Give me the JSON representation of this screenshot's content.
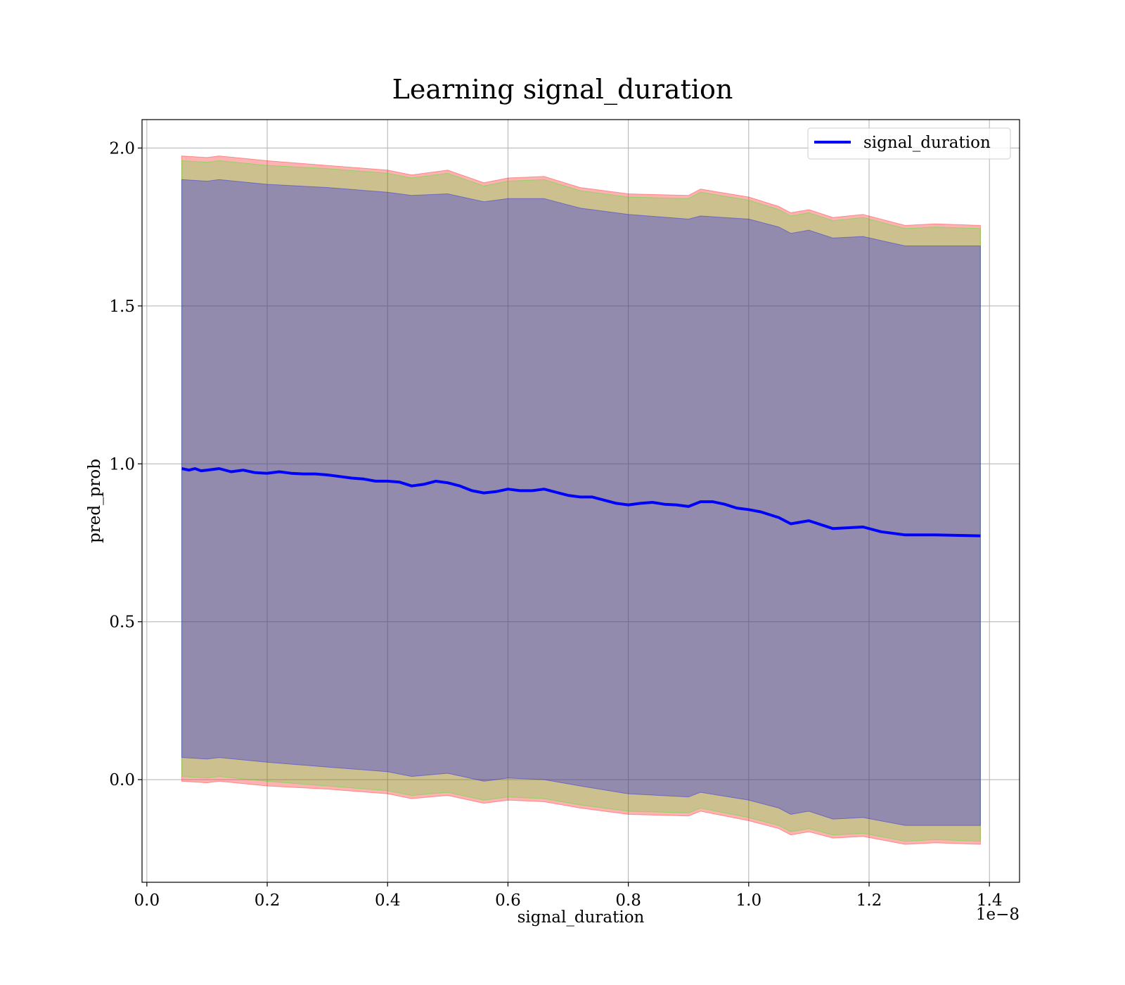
{
  "chart_data": {
    "type": "line",
    "title": "Learning signal_duration",
    "xlabel": "signal_duration",
    "ylabel": "pred_prob",
    "x_offset_text": "1e−8",
    "x_ticks": [
      0.0,
      0.2,
      0.4,
      0.6,
      0.8,
      1.0,
      1.2,
      1.4
    ],
    "x_tick_labels": [
      "0.0",
      "0.2",
      "0.4",
      "0.6",
      "0.8",
      "1.0",
      "1.2",
      "1.4"
    ],
    "y_ticks": [
      0.0,
      0.5,
      1.0,
      1.5,
      2.0
    ],
    "y_tick_labels": [
      "0.0",
      "0.5",
      "1.0",
      "1.5",
      "2.0"
    ],
    "xlim": [
      -0.008,
      1.45
    ],
    "ylim": [
      -0.325,
      2.09
    ],
    "grid": true,
    "legend_position": "top-right",
    "series": [
      {
        "name": "signal_duration",
        "color": "#0000ff",
        "x": [
          0.058,
          0.07,
          0.08,
          0.09,
          0.1,
          0.12,
          0.14,
          0.16,
          0.18,
          0.2,
          0.22,
          0.24,
          0.26,
          0.28,
          0.3,
          0.32,
          0.34,
          0.36,
          0.38,
          0.4,
          0.42,
          0.44,
          0.46,
          0.48,
          0.5,
          0.52,
          0.54,
          0.56,
          0.58,
          0.6,
          0.62,
          0.64,
          0.66,
          0.68,
          0.7,
          0.72,
          0.74,
          0.76,
          0.78,
          0.8,
          0.82,
          0.84,
          0.86,
          0.88,
          0.9,
          0.92,
          0.94,
          0.96,
          0.98,
          1.0,
          1.02,
          1.05,
          1.07,
          1.1,
          1.14,
          1.19,
          1.22,
          1.26,
          1.31,
          1.385
        ],
        "values": [
          0.985,
          0.98,
          0.985,
          0.978,
          0.98,
          0.985,
          0.975,
          0.98,
          0.972,
          0.97,
          0.975,
          0.97,
          0.968,
          0.968,
          0.965,
          0.96,
          0.955,
          0.952,
          0.945,
          0.945,
          0.942,
          0.93,
          0.935,
          0.945,
          0.94,
          0.93,
          0.915,
          0.908,
          0.912,
          0.92,
          0.915,
          0.915,
          0.92,
          0.91,
          0.9,
          0.895,
          0.895,
          0.885,
          0.875,
          0.87,
          0.875,
          0.878,
          0.872,
          0.87,
          0.865,
          0.88,
          0.88,
          0.872,
          0.86,
          0.855,
          0.848,
          0.83,
          0.81,
          0.82,
          0.795,
          0.8,
          0.785,
          0.775,
          0.775,
          0.772
        ]
      }
    ],
    "bands": [
      {
        "color": "#ff0000",
        "opacity": 0.3,
        "x": [
          0.058,
          0.1,
          0.12,
          0.2,
          0.3,
          0.4,
          0.44,
          0.5,
          0.56,
          0.6,
          0.66,
          0.72,
          0.8,
          0.9,
          0.92,
          1.0,
          1.05,
          1.07,
          1.1,
          1.14,
          1.19,
          1.26,
          1.31,
          1.385
        ],
        "upper": [
          1.975,
          1.97,
          1.975,
          1.96,
          1.945,
          1.93,
          1.915,
          1.93,
          1.89,
          1.905,
          1.91,
          1.875,
          1.855,
          1.85,
          1.87,
          1.845,
          1.815,
          1.795,
          1.805,
          1.78,
          1.79,
          1.755,
          1.76,
          1.755
        ],
        "lower": [
          -0.005,
          -0.01,
          -0.005,
          -0.02,
          -0.03,
          -0.045,
          -0.06,
          -0.05,
          -0.075,
          -0.065,
          -0.07,
          -0.09,
          -0.11,
          -0.115,
          -0.1,
          -0.13,
          -0.155,
          -0.175,
          -0.165,
          -0.185,
          -0.18,
          -0.205,
          -0.2,
          -0.205
        ]
      },
      {
        "color": "#00ff00",
        "opacity": 0.2,
        "x": [
          0.058,
          0.1,
          0.12,
          0.2,
          0.3,
          0.4,
          0.44,
          0.5,
          0.56,
          0.6,
          0.66,
          0.72,
          0.8,
          0.9,
          0.92,
          1.0,
          1.05,
          1.07,
          1.1,
          1.14,
          1.19,
          1.26,
          1.31,
          1.385
        ],
        "upper": [
          1.96,
          1.955,
          1.96,
          1.945,
          1.935,
          1.92,
          1.905,
          1.92,
          1.88,
          1.895,
          1.9,
          1.865,
          1.845,
          1.84,
          1.86,
          1.835,
          1.805,
          1.785,
          1.795,
          1.77,
          1.78,
          1.745,
          1.75,
          1.745
        ],
        "lower": [
          0.01,
          0.005,
          0.01,
          -0.005,
          -0.02,
          -0.035,
          -0.05,
          -0.04,
          -0.065,
          -0.055,
          -0.06,
          -0.08,
          -0.1,
          -0.105,
          -0.09,
          -0.12,
          -0.145,
          -0.165,
          -0.155,
          -0.175,
          -0.17,
          -0.195,
          -0.19,
          -0.195
        ]
      },
      {
        "color": "#0000ff",
        "opacity": 0.28,
        "x": [
          0.058,
          0.1,
          0.12,
          0.2,
          0.3,
          0.4,
          0.44,
          0.5,
          0.56,
          0.6,
          0.66,
          0.72,
          0.8,
          0.9,
          0.92,
          1.0,
          1.05,
          1.07,
          1.1,
          1.14,
          1.19,
          1.26,
          1.31,
          1.385
        ],
        "upper": [
          1.9,
          1.895,
          1.9,
          1.885,
          1.875,
          1.86,
          1.85,
          1.855,
          1.83,
          1.84,
          1.84,
          1.81,
          1.79,
          1.775,
          1.785,
          1.775,
          1.75,
          1.73,
          1.74,
          1.715,
          1.72,
          1.69,
          1.69,
          1.69
        ],
        "lower": [
          0.07,
          0.065,
          0.07,
          0.055,
          0.04,
          0.025,
          0.01,
          0.02,
          -0.005,
          0.005,
          0.0,
          -0.02,
          -0.045,
          -0.055,
          -0.04,
          -0.065,
          -0.09,
          -0.11,
          -0.1,
          -0.125,
          -0.12,
          -0.145,
          -0.145,
          -0.145
        ]
      }
    ]
  }
}
